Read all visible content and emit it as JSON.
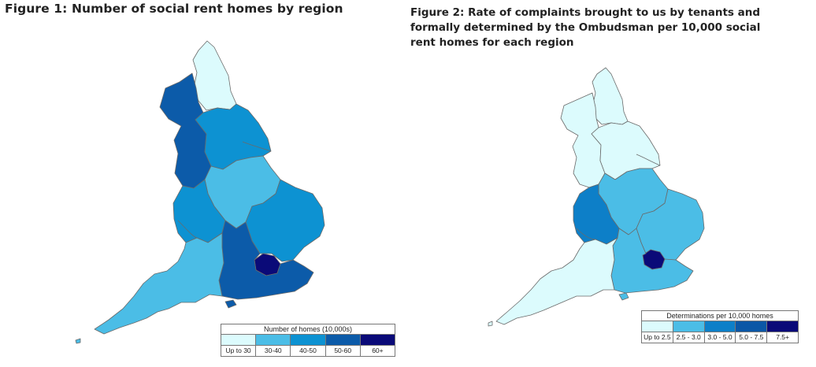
{
  "figures": [
    {
      "title": "Figure 1: Number of social rent homes by region",
      "legend": {
        "title": "Number of homes (10,000s)",
        "bins": [
          {
            "label": "Up to 30",
            "color": "#dcfbfd"
          },
          {
            "label": "30-40",
            "color": "#4bbde6"
          },
          {
            "label": "40-50",
            "color": "#0d92d2"
          },
          {
            "label": "50-60",
            "color": "#0c5ba9"
          },
          {
            "label": "60+",
            "color": "#0a0a78"
          }
        ]
      },
      "regions": {
        "North East": "Up to 30",
        "North West": "50-60",
        "Yorkshire and the Humber": "40-50",
        "East Midlands": "30-40",
        "West Midlands": "40-50",
        "East of England": "40-50",
        "London": "60+",
        "South East": "50-60",
        "South West": "30-40"
      }
    },
    {
      "title": "Figure 2: Rate of complaints brought to us by tenants and formally determined by the Ombudsman per 10,000 social rent homes for each region",
      "legend": {
        "title": "Determinations per 10,000 homes",
        "bins": [
          {
            "label": "Up to 2.5",
            "color": "#dcfbfd"
          },
          {
            "label": "2.5 - 3.0",
            "color": "#4bbde6"
          },
          {
            "label": "3.0 - 5.0",
            "color": "#0d7fc8"
          },
          {
            "label": "5.0 - 7.5",
            "color": "#0b57a6"
          },
          {
            "label": "7.5+",
            "color": "#0a0a78"
          }
        ]
      },
      "regions": {
        "North East": "Up to 2.5",
        "North West": "Up to 2.5",
        "Yorkshire and the Humber": "Up to 2.5",
        "East Midlands": "2.5 - 3.0",
        "West Midlands": "3.0 - 5.0",
        "East of England": "2.5 - 3.0",
        "London": "7.5+",
        "South East": "2.5 - 3.0",
        "South West": "Up to 2.5"
      }
    }
  ]
}
